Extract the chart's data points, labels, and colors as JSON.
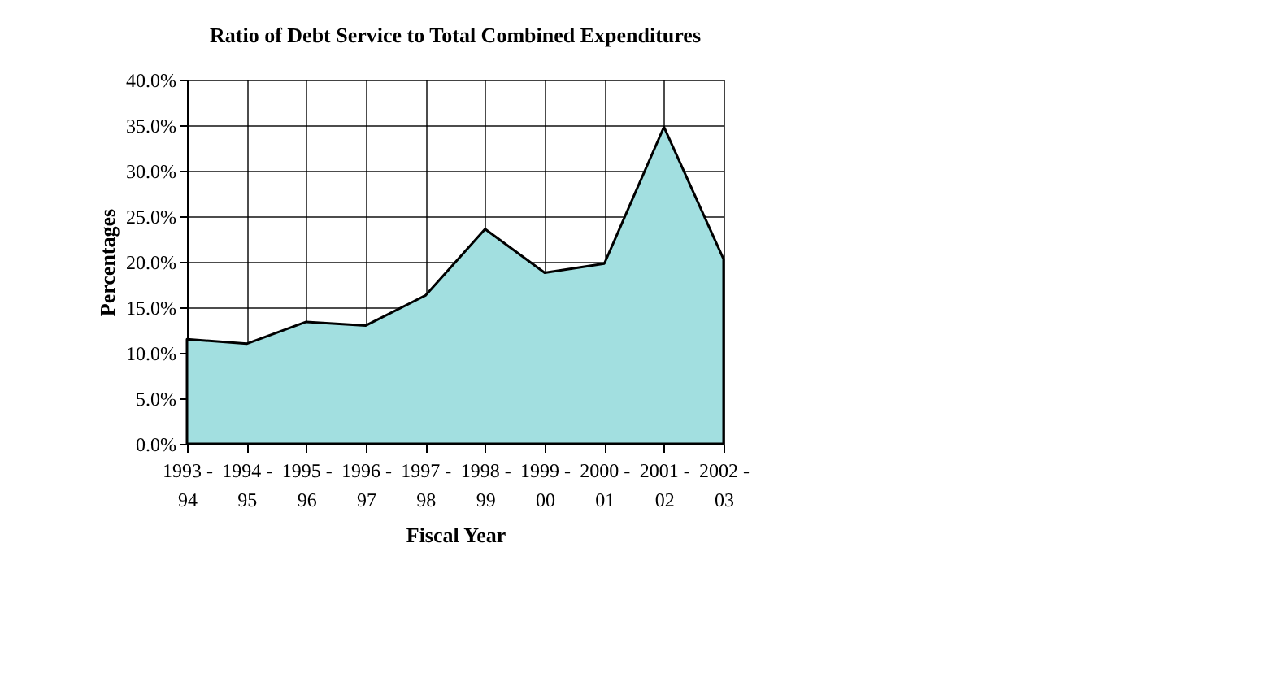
{
  "chart_data": {
    "type": "area",
    "title": "Ratio of Debt Service to  Total Combined Expenditures",
    "xlabel": "Fiscal Year",
    "ylabel": "Percentages",
    "categories": [
      "1993 - 94",
      "1994 - 95",
      "1995 - 96",
      "1996 - 97",
      "1997 - 98",
      "1998 - 99",
      "1999 - 00",
      "2000 - 01",
      "2001 - 02",
      "2002 - 03"
    ],
    "series": [
      {
        "color": "#a2dfe0",
        "values": [
          11.5,
          11.0,
          13.4,
          13.0,
          16.3,
          23.6,
          18.8,
          19.8,
          34.8,
          20.3
        ]
      }
    ],
    "ylim": [
      0,
      40
    ],
    "yticks": [
      {
        "value": 0,
        "label": "0.0%"
      },
      {
        "value": 5,
        "label": "5.0%"
      },
      {
        "value": 10,
        "label": "10.0%"
      },
      {
        "value": 15,
        "label": "15.0%"
      },
      {
        "value": 20,
        "label": "20.0%"
      },
      {
        "value": 25,
        "label": "25.0%"
      },
      {
        "value": 30,
        "label": "30.0%"
      },
      {
        "value": 35,
        "label": "35.0%"
      },
      {
        "value": 40,
        "label": "40.0%"
      }
    ],
    "grid": true
  }
}
